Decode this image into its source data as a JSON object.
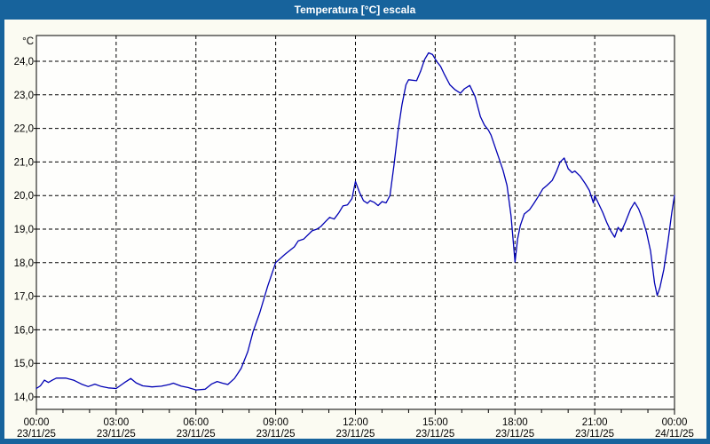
{
  "window": {
    "title": "Temperatura [°C] escala"
  },
  "colors": {
    "titlebar": "#17639c",
    "frame": "#17639c",
    "background": "#fbfbf2",
    "plot_background": "#fefefc",
    "line": "#0000b4",
    "grid": "#000000",
    "axis": "#000000",
    "text": "#000000",
    "title_text": "#ffffff"
  },
  "chart_data": {
    "type": "line",
    "title": "Temperatura [°C] escala",
    "grid": {
      "style": "dashed",
      "horizontal": true,
      "vertical": true
    },
    "y_axis": {
      "unit": "°C",
      "ylim_drawn": [
        13.6,
        24.8
      ],
      "ticks": [
        {
          "v": 14,
          "label": "14,0"
        },
        {
          "v": 15,
          "label": "15,0"
        },
        {
          "v": 16,
          "label": "16,0"
        },
        {
          "v": 17,
          "label": "17,0"
        },
        {
          "v": 18,
          "label": "18,0"
        },
        {
          "v": 19,
          "label": "19,0"
        },
        {
          "v": 20,
          "label": "20,0"
        },
        {
          "v": 21,
          "label": "21,0"
        },
        {
          "v": 22,
          "label": "22,0"
        },
        {
          "v": 23,
          "label": "23,0"
        },
        {
          "v": 24,
          "label": "24,0"
        }
      ]
    },
    "x_axis": {
      "hours_span": 24,
      "major_tick_every_h": 3,
      "minor_tick_every_h": 1,
      "ticks": [
        {
          "h": 0,
          "time": "00:00",
          "date": "23/11/25"
        },
        {
          "h": 3,
          "time": "03:00",
          "date": "23/11/25"
        },
        {
          "h": 6,
          "time": "06:00",
          "date": "23/11/25"
        },
        {
          "h": 9,
          "time": "09:00",
          "date": "23/11/25"
        },
        {
          "h": 12,
          "time": "12:00",
          "date": "23/11/25"
        },
        {
          "h": 15,
          "time": "15:00",
          "date": "23/11/25"
        },
        {
          "h": 18,
          "time": "18:00",
          "date": "23/11/25"
        },
        {
          "h": 21,
          "time": "21:00",
          "date": "23/11/25"
        },
        {
          "h": 24,
          "time": "00:00",
          "date": "24/11/25"
        }
      ]
    },
    "series": [
      {
        "name": "Temperatura",
        "color": "#0000b4",
        "points": [
          [
            0.0,
            14.25
          ],
          [
            0.15,
            14.33
          ],
          [
            0.3,
            14.5
          ],
          [
            0.45,
            14.43
          ],
          [
            0.6,
            14.5
          ],
          [
            0.75,
            14.56
          ],
          [
            1.1,
            14.56
          ],
          [
            1.4,
            14.5
          ],
          [
            1.7,
            14.38
          ],
          [
            1.95,
            14.31
          ],
          [
            2.2,
            14.38
          ],
          [
            2.45,
            14.31
          ],
          [
            2.7,
            14.27
          ],
          [
            3.0,
            14.25
          ],
          [
            3.3,
            14.42
          ],
          [
            3.55,
            14.55
          ],
          [
            3.75,
            14.42
          ],
          [
            4.0,
            14.33
          ],
          [
            4.35,
            14.3
          ],
          [
            4.7,
            14.32
          ],
          [
            5.0,
            14.37
          ],
          [
            5.15,
            14.41
          ],
          [
            5.45,
            14.32
          ],
          [
            5.7,
            14.28
          ],
          [
            6.0,
            14.21
          ],
          [
            6.35,
            14.23
          ],
          [
            6.6,
            14.39
          ],
          [
            6.8,
            14.46
          ],
          [
            7.0,
            14.41
          ],
          [
            7.2,
            14.37
          ],
          [
            7.45,
            14.55
          ],
          [
            7.7,
            14.85
          ],
          [
            7.95,
            15.35
          ],
          [
            8.15,
            15.95
          ],
          [
            8.4,
            16.5
          ],
          [
            8.7,
            17.3
          ],
          [
            9.0,
            18.0
          ],
          [
            9.35,
            18.25
          ],
          [
            9.7,
            18.47
          ],
          [
            9.85,
            18.65
          ],
          [
            10.05,
            18.7
          ],
          [
            10.37,
            18.95
          ],
          [
            10.55,
            19.0
          ],
          [
            10.7,
            19.08
          ],
          [
            10.87,
            19.22
          ],
          [
            11.03,
            19.35
          ],
          [
            11.2,
            19.3
          ],
          [
            11.37,
            19.48
          ],
          [
            11.53,
            19.69
          ],
          [
            11.7,
            19.72
          ],
          [
            11.87,
            19.91
          ],
          [
            12.0,
            20.42
          ],
          [
            12.15,
            20.1
          ],
          [
            12.3,
            19.85
          ],
          [
            12.45,
            19.77
          ],
          [
            12.55,
            19.85
          ],
          [
            12.7,
            19.8
          ],
          [
            12.85,
            19.7
          ],
          [
            13.0,
            19.82
          ],
          [
            13.15,
            19.78
          ],
          [
            13.3,
            20.0
          ],
          [
            13.45,
            20.9
          ],
          [
            13.6,
            21.9
          ],
          [
            13.75,
            22.7
          ],
          [
            13.9,
            23.3
          ],
          [
            14.0,
            23.45
          ],
          [
            14.3,
            23.42
          ],
          [
            14.45,
            23.7
          ],
          [
            14.6,
            24.05
          ],
          [
            14.75,
            24.25
          ],
          [
            14.9,
            24.2
          ],
          [
            15.05,
            24.0
          ],
          [
            15.2,
            23.85
          ],
          [
            15.35,
            23.6
          ],
          [
            15.55,
            23.3
          ],
          [
            15.75,
            23.15
          ],
          [
            15.95,
            23.05
          ],
          [
            16.1,
            23.18
          ],
          [
            16.3,
            23.28
          ],
          [
            16.5,
            22.95
          ],
          [
            16.7,
            22.35
          ],
          [
            16.85,
            22.1
          ],
          [
            17.0,
            21.95
          ],
          [
            17.1,
            21.8
          ],
          [
            17.25,
            21.45
          ],
          [
            17.4,
            21.1
          ],
          [
            17.55,
            20.75
          ],
          [
            17.7,
            20.3
          ],
          [
            17.85,
            19.4
          ],
          [
            18.0,
            18.02
          ],
          [
            18.1,
            18.7
          ],
          [
            18.2,
            19.1
          ],
          [
            18.35,
            19.45
          ],
          [
            18.55,
            19.58
          ],
          [
            18.7,
            19.75
          ],
          [
            18.9,
            20.0
          ],
          [
            19.05,
            20.2
          ],
          [
            19.2,
            20.3
          ],
          [
            19.4,
            20.45
          ],
          [
            19.55,
            20.7
          ],
          [
            19.7,
            21.0
          ],
          [
            19.85,
            21.12
          ],
          [
            20.0,
            20.8
          ],
          [
            20.15,
            20.68
          ],
          [
            20.25,
            20.73
          ],
          [
            20.45,
            20.58
          ],
          [
            20.65,
            20.35
          ],
          [
            20.8,
            20.15
          ],
          [
            20.95,
            19.78
          ],
          [
            21.0,
            20.0
          ],
          [
            21.15,
            19.75
          ],
          [
            21.3,
            19.5
          ],
          [
            21.45,
            19.2
          ],
          [
            21.6,
            18.95
          ],
          [
            21.75,
            18.76
          ],
          [
            21.88,
            19.05
          ],
          [
            22.0,
            18.93
          ],
          [
            22.15,
            19.2
          ],
          [
            22.35,
            19.6
          ],
          [
            22.5,
            19.8
          ],
          [
            22.65,
            19.6
          ],
          [
            22.8,
            19.3
          ],
          [
            22.95,
            18.9
          ],
          [
            23.1,
            18.35
          ],
          [
            23.25,
            17.4
          ],
          [
            23.35,
            17.02
          ],
          [
            23.45,
            17.25
          ],
          [
            23.6,
            17.8
          ],
          [
            23.75,
            18.6
          ],
          [
            23.9,
            19.5
          ],
          [
            24.0,
            20.0
          ]
        ]
      }
    ]
  }
}
